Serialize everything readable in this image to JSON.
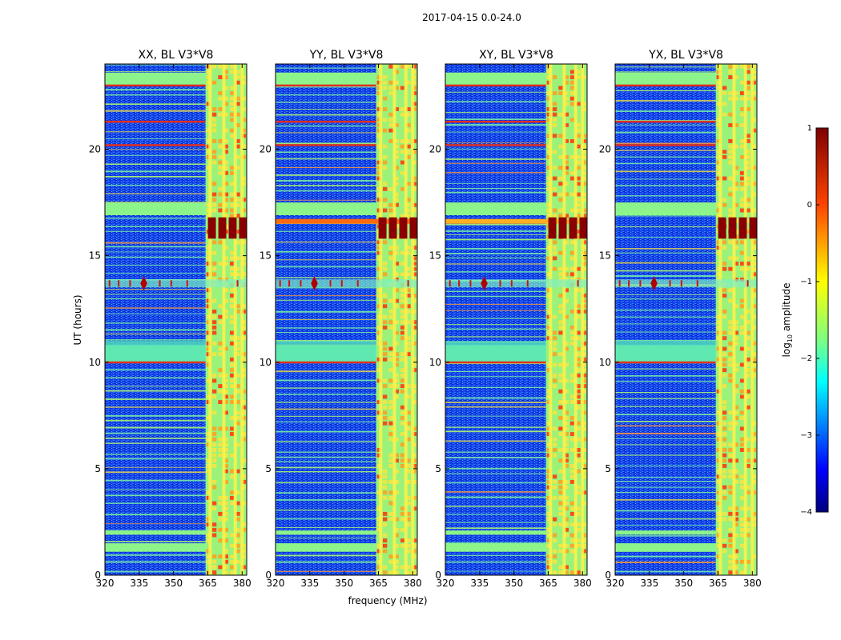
{
  "chart_data": {
    "type": "heatmap",
    "suptitle": "2017-04-15 0.0-24.0",
    "xlabel": "frequency (MHz)",
    "ylabel": "UT (hours)",
    "xlim": [
      320,
      382
    ],
    "ylim": [
      0,
      24
    ],
    "xticks": [
      320,
      335,
      350,
      365,
      380
    ],
    "xtick_labels": [
      "320",
      "335",
      "350",
      "365",
      "380"
    ],
    "yticks": [
      0,
      5,
      10,
      15,
      20
    ],
    "ytick_labels": [
      "0",
      "5",
      "10",
      "15",
      "20"
    ],
    "colorbar": {
      "label": "log₁₀ amplitude",
      "label_base": "log",
      "label_sub": "10",
      "label_rest": " amplitude",
      "colormap": "jet",
      "range": [
        -4,
        1
      ],
      "ticks": [
        1,
        0,
        -1,
        -2,
        -3,
        -4
      ],
      "tick_labels": [
        "1",
        "0",
        "−1",
        "−2",
        "−3",
        "−4"
      ],
      "colors": [
        "#00007f",
        "#0000ff",
        "#007fff",
        "#00ffff",
        "#7fff7f",
        "#ffff00",
        "#ff7f00",
        "#ff0000",
        "#7f0000"
      ]
    },
    "panels": [
      {
        "title": "XX, BL V3*V8",
        "strong_band_hours": [
          15.8,
          16.8
        ],
        "event_hour": 13.7
      },
      {
        "title": "YY, BL V3*V8",
        "strong_band_hours": [
          15.8,
          16.8
        ],
        "event_hour": 13.7
      },
      {
        "title": "XY, BL V3*V8",
        "strong_band_hours": [
          15.8,
          16.8
        ],
        "event_hour": 13.7
      },
      {
        "title": "YX, BL V3*V8",
        "strong_band_hours": [
          15.8,
          16.8
        ],
        "event_hour": 13.7
      }
    ],
    "rfi_band_mhz": [
      364,
      382
    ],
    "rfi_channels_mhz": [
      366,
      372,
      377,
      380
    ],
    "flagged_hour_bands": [
      [
        1.1,
        1.5
      ],
      [
        1.9,
        2.1
      ],
      [
        10.0,
        10.8
      ],
      [
        16.9,
        17.5
      ],
      [
        23.0,
        23.6
      ]
    ]
  }
}
